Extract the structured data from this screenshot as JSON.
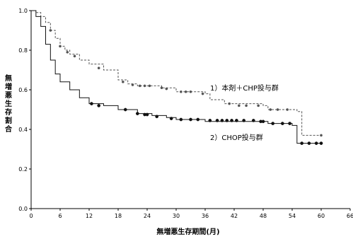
{
  "chart_data": {
    "type": "line",
    "title": "",
    "xlabel": "無増悪生存期間(月)",
    "ylabel": "無増悪生存割合",
    "xlim": [
      0,
      66
    ],
    "ylim": [
      0.0,
      1.0
    ],
    "x_ticks": [
      "0",
      "6",
      "12",
      "18",
      "24",
      "30",
      "36",
      "42",
      "48",
      "54",
      "60",
      "66"
    ],
    "y_ticks": [
      "0.0",
      "0.2",
      "0.4",
      "0.6",
      "0.8",
      "1.0"
    ],
    "grid": false,
    "step": true,
    "series": [
      {
        "name": "1）本剤＋CHP投与群",
        "line_style": "dashed",
        "color": "#555555",
        "points": [
          [
            0,
            1.0
          ],
          [
            1,
            0.99
          ],
          [
            2,
            0.97
          ],
          [
            3,
            0.94
          ],
          [
            4,
            0.9
          ],
          [
            5,
            0.86
          ],
          [
            6,
            0.82
          ],
          [
            7,
            0.8
          ],
          [
            8,
            0.78
          ],
          [
            10,
            0.75
          ],
          [
            12,
            0.73
          ],
          [
            15,
            0.7
          ],
          [
            18,
            0.65
          ],
          [
            20,
            0.63
          ],
          [
            22,
            0.62
          ],
          [
            27,
            0.61
          ],
          [
            30,
            0.59
          ],
          [
            36,
            0.58
          ],
          [
            37,
            0.55
          ],
          [
            40,
            0.53
          ],
          [
            48,
            0.52
          ],
          [
            49,
            0.5
          ],
          [
            55,
            0.49
          ],
          [
            56,
            0.37
          ],
          [
            60,
            0.37
          ]
        ],
        "censored": [
          [
            4,
            0.9
          ],
          [
            6,
            0.82
          ],
          [
            7.5,
            0.79
          ],
          [
            9,
            0.77
          ],
          [
            14,
            0.71
          ],
          [
            19,
            0.64
          ],
          [
            21,
            0.625
          ],
          [
            22.5,
            0.62
          ],
          [
            23.5,
            0.62
          ],
          [
            24.5,
            0.62
          ],
          [
            27,
            0.61
          ],
          [
            28,
            0.605
          ],
          [
            31,
            0.59
          ],
          [
            32,
            0.59
          ],
          [
            33,
            0.59
          ],
          [
            35.5,
            0.58
          ],
          [
            41,
            0.53
          ],
          [
            43,
            0.52
          ],
          [
            44.5,
            0.52
          ],
          [
            47,
            0.52
          ],
          [
            49.5,
            0.5
          ],
          [
            51,
            0.5
          ],
          [
            53,
            0.5
          ],
          [
            60,
            0.37
          ]
        ]
      },
      {
        "name": "2）CHOP投与群",
        "line_style": "solid",
        "color": "#111111",
        "points": [
          [
            0,
            1.0
          ],
          [
            1,
            0.97
          ],
          [
            2,
            0.92
          ],
          [
            3,
            0.83
          ],
          [
            4,
            0.75
          ],
          [
            5,
            0.68
          ],
          [
            6,
            0.64
          ],
          [
            8,
            0.6
          ],
          [
            10,
            0.56
          ],
          [
            12,
            0.53
          ],
          [
            15,
            0.52
          ],
          [
            18,
            0.5
          ],
          [
            22,
            0.48
          ],
          [
            25,
            0.47
          ],
          [
            28,
            0.46
          ],
          [
            30,
            0.45
          ],
          [
            36,
            0.44
          ],
          [
            48,
            0.44
          ],
          [
            49,
            0.43
          ],
          [
            54,
            0.42
          ],
          [
            55,
            0.33
          ],
          [
            60,
            0.33
          ]
        ],
        "censored": [
          [
            12.5,
            0.53
          ],
          [
            14,
            0.52
          ],
          [
            19.5,
            0.5
          ],
          [
            22,
            0.48
          ],
          [
            23.5,
            0.475
          ],
          [
            24,
            0.475
          ],
          [
            26,
            0.465
          ],
          [
            29,
            0.455
          ],
          [
            31,
            0.45
          ],
          [
            33,
            0.45
          ],
          [
            34.5,
            0.45
          ],
          [
            37,
            0.445
          ],
          [
            38.5,
            0.445
          ],
          [
            39.5,
            0.445
          ],
          [
            40.5,
            0.445
          ],
          [
            41.5,
            0.445
          ],
          [
            42.5,
            0.445
          ],
          [
            44,
            0.445
          ],
          [
            46,
            0.445
          ],
          [
            47.5,
            0.44
          ],
          [
            48,
            0.44
          ],
          [
            50,
            0.43
          ],
          [
            52,
            0.43
          ],
          [
            53.5,
            0.43
          ],
          [
            56,
            0.33
          ],
          [
            57.5,
            0.33
          ],
          [
            59,
            0.33
          ],
          [
            60,
            0.33
          ]
        ]
      }
    ]
  }
}
